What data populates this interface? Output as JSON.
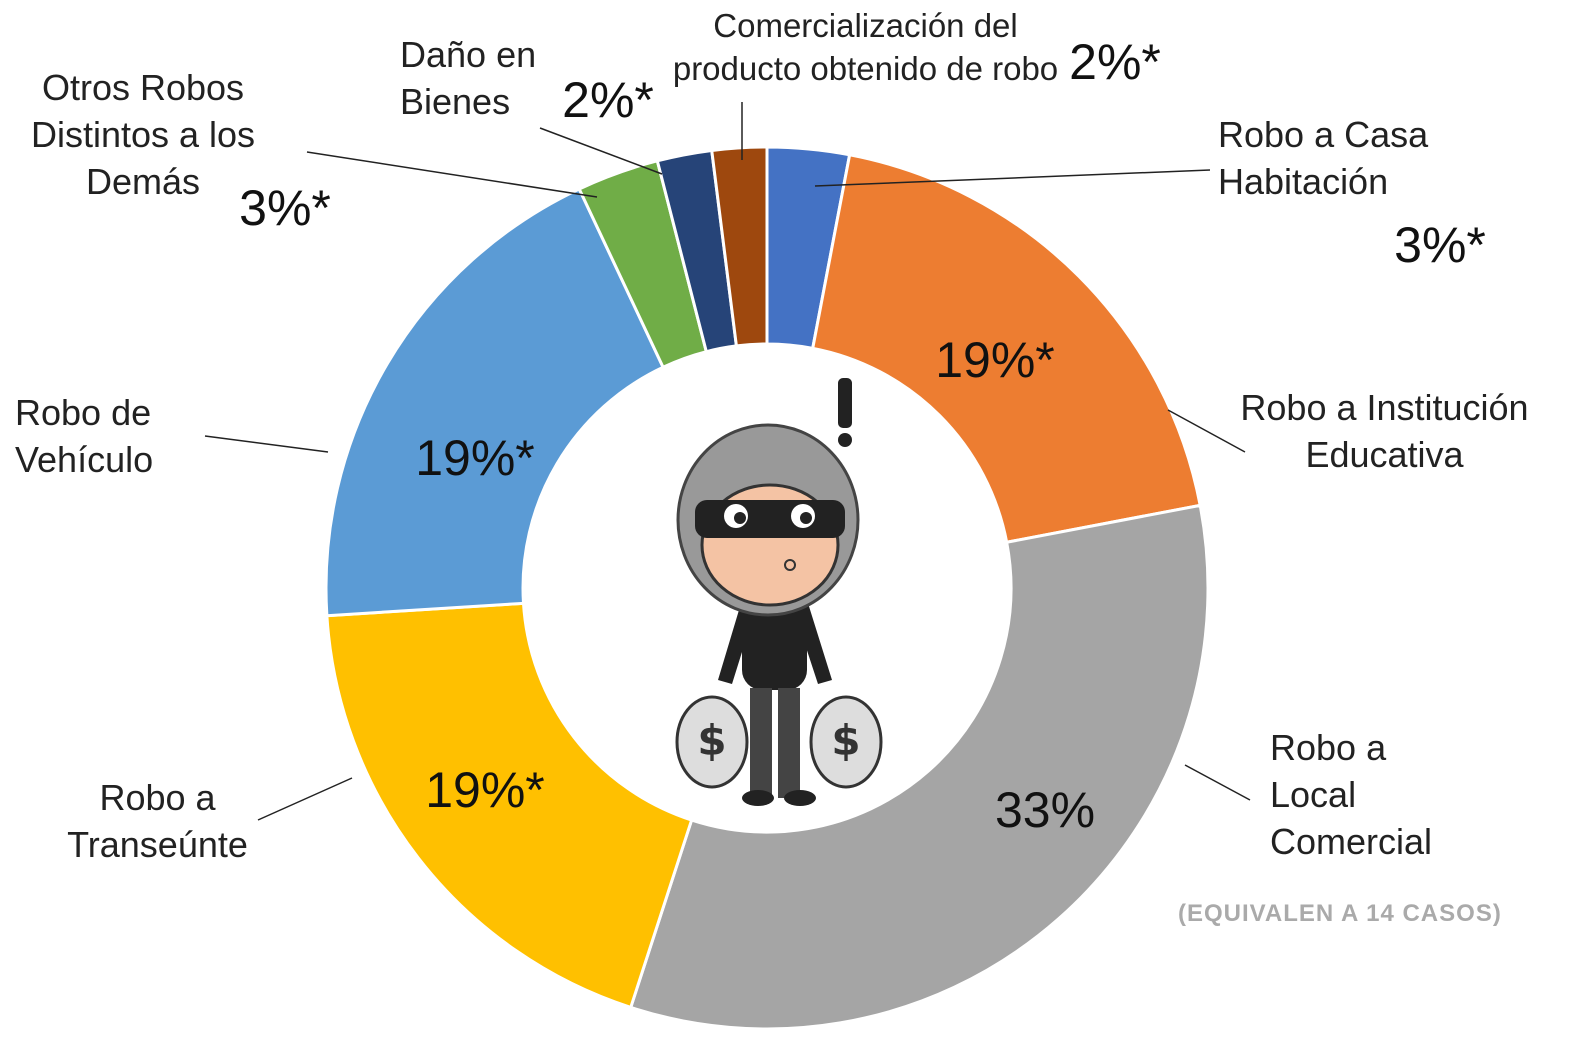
{
  "chart_data": {
    "type": "donut",
    "categories": [
      "Robo a Casa Habitación",
      "Robo a Institución Educativa",
      "Robo a Local Comercial",
      "Robo a Transeúnte",
      "Robo de Vehículo",
      "Otros Robos Distintos a los Demás",
      "Daño en Bienes",
      "Comercialización del producto obtenido de robo"
    ],
    "values": [
      3,
      19,
      33,
      19,
      19,
      3,
      2,
      2
    ],
    "value_labels": [
      "3%*",
      "19%*",
      "33%",
      "19%*",
      "19%*",
      "3%*",
      "2%*",
      "2%*"
    ],
    "colors": [
      "#4472c4",
      "#ed7d31",
      "#a5a5a5",
      "#ffc000",
      "#5b9bd5",
      "#70ad47",
      "#264478",
      "#9e480e"
    ],
    "annotation": "(EQUIVALEN A 14 CASOS)"
  }
}
